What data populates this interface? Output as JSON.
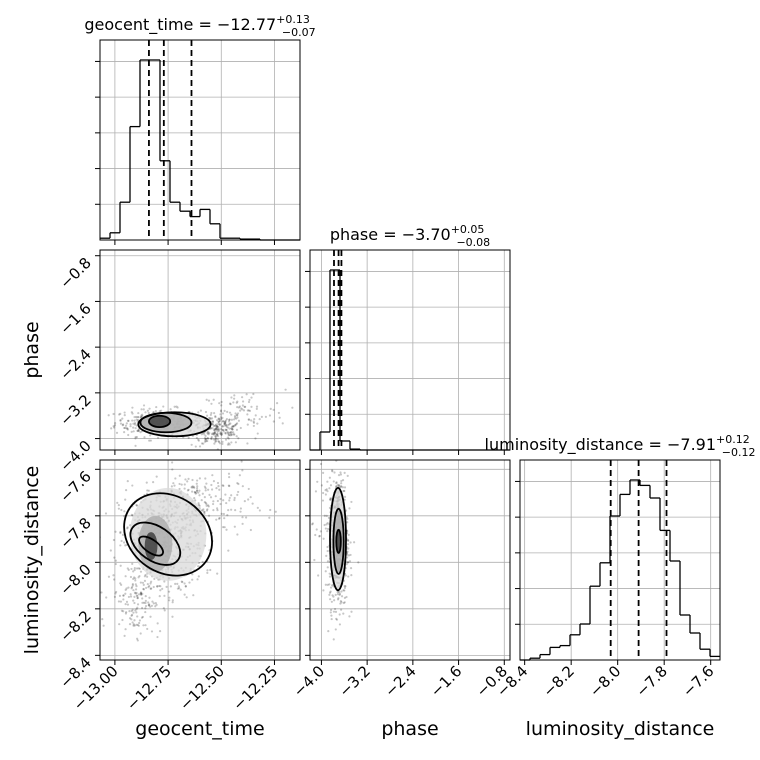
{
  "chart_data": {
    "type": "corner",
    "parameters": [
      {
        "name": "geocent_time",
        "title": {
          "prefix": "geocent_time = ",
          "value": "−12.77",
          "plus": "+0.13",
          "minus": "−0.07"
        },
        "range": [
          -13.07,
          -12.13
        ],
        "ticks": [
          {
            "v": -13.0,
            "label": "−13.00"
          },
          {
            "v": -12.75,
            "label": "−12.75"
          },
          {
            "v": -12.5,
            "label": "−12.50"
          },
          {
            "v": -12.25,
            "label": "−12.25"
          }
        ],
        "quantiles": [
          -12.84,
          -12.77,
          -12.64
        ],
        "hist_edges": [
          -13.07,
          -13.023,
          -12.976,
          -12.929,
          -12.882,
          -12.835,
          -12.788,
          -12.741,
          -12.694,
          -12.647,
          -12.6,
          -12.553,
          -12.506,
          -12.459,
          -12.412,
          -12.365,
          -12.318,
          -12.271,
          -12.224,
          -12.177,
          -12.13
        ],
        "hist_counts": [
          0.01,
          0.04,
          0.21,
          0.63,
          1.0,
          1.0,
          0.44,
          0.21,
          0.16,
          0.13,
          0.17,
          0.09,
          0.01,
          0.01,
          0.005,
          0.005,
          0.0,
          0.0,
          0.0,
          0.0
        ]
      },
      {
        "name": "phase",
        "title": {
          "prefix": "phase = ",
          "value": "−3.70",
          "plus": "+0.05",
          "minus": "−0.08"
        },
        "range": [
          -4.2,
          -0.7
        ],
        "ticks": [
          {
            "v": -4.0,
            "label": "−4.0"
          },
          {
            "v": -3.2,
            "label": "−3.2"
          },
          {
            "v": -2.4,
            "label": "−2.4"
          },
          {
            "v": -1.6,
            "label": "−1.6"
          },
          {
            "v": -0.8,
            "label": "−0.8"
          }
        ],
        "quantiles": [
          -3.78,
          -3.7,
          -3.65
        ],
        "hist_edges": [
          -4.2,
          -4.025,
          -3.85,
          -3.675,
          -3.5,
          -3.325,
          -3.15,
          -2.975,
          -2.8,
          -2.625,
          -2.45,
          -2.275,
          -2.1,
          -1.925,
          -1.75,
          -1.575,
          -1.4,
          -1.225,
          -1.05,
          -0.875,
          -0.7
        ],
        "hist_counts": [
          0.0,
          0.1,
          1.0,
          0.05,
          0.005,
          0.0,
          0.0,
          0.0,
          0.0,
          0.0,
          0.0,
          0.0,
          0.0,
          0.0,
          0.0,
          0.0,
          0.0,
          0.0,
          0.0,
          0.0
        ]
      },
      {
        "name": "luminosity_distance",
        "title": {
          "prefix": "luminosity_distance = ",
          "value": "−7.91",
          "plus": "+0.12",
          "minus": "−0.12"
        },
        "range": [
          -8.42,
          -7.56
        ],
        "ticks": [
          {
            "v": -8.4,
            "label": "−8.4"
          },
          {
            "v": -8.2,
            "label": "−8.2"
          },
          {
            "v": -8.0,
            "label": "−8.0"
          },
          {
            "v": -7.8,
            "label": "−7.8"
          },
          {
            "v": -7.6,
            "label": "−7.6"
          }
        ],
        "quantiles": [
          -8.03,
          -7.91,
          -7.79
        ],
        "hist_edges": [
          -8.42,
          -8.377,
          -8.334,
          -8.291,
          -8.248,
          -8.205,
          -8.162,
          -8.119,
          -8.076,
          -8.033,
          -7.99,
          -7.947,
          -7.904,
          -7.861,
          -7.818,
          -7.775,
          -7.732,
          -7.689,
          -7.646,
          -7.603,
          -7.56
        ],
        "hist_counts": [
          0.0,
          0.01,
          0.03,
          0.07,
          0.08,
          0.14,
          0.2,
          0.41,
          0.54,
          0.8,
          0.92,
          1.0,
          0.97,
          0.9,
          0.72,
          0.55,
          0.25,
          0.15,
          0.06,
          0.02
        ]
      }
    ],
    "pair_density": [
      {
        "x_param": "geocent_time",
        "y_param": "phase",
        "centers": [
          [
            -12.79,
            -3.7
          ],
          [
            -12.68,
            -3.75
          ],
          [
            -12.5,
            -3.88
          ]
        ],
        "contours": [
          {
            "cx": -12.79,
            "cy": -3.7,
            "rx": 0.05,
            "ry": 0.1
          },
          {
            "cx": -12.76,
            "cy": -3.72,
            "rx": 0.12,
            "ry": 0.17
          },
          {
            "cx": -12.72,
            "cy": -3.75,
            "rx": 0.17,
            "ry": 0.21
          }
        ],
        "scatter_clusters": [
          {
            "cx": -12.8,
            "cy": -3.72,
            "sx": 0.1,
            "sy": 0.12,
            "n": 320
          },
          {
            "cx": -12.52,
            "cy": -3.85,
            "sx": 0.06,
            "sy": 0.14,
            "n": 240
          },
          {
            "cx": -12.4,
            "cy": -3.55,
            "sx": 0.1,
            "sy": 0.2,
            "n": 80
          }
        ]
      },
      {
        "x_param": "geocent_time",
        "y_param": "luminosity_distance",
        "contours": [
          {
            "cx": -12.83,
            "cy": -7.93,
            "rx": 0.03,
            "ry": 0.06
          },
          {
            "cx": -12.81,
            "cy": -7.92,
            "rx": 0.08,
            "ry": 0.12
          },
          {
            "cx": -12.75,
            "cy": -7.88,
            "rx": 0.18,
            "ry": 0.2
          }
        ],
        "scatter_clusters": [
          {
            "cx": -12.78,
            "cy": -7.92,
            "sx": 0.1,
            "sy": 0.12,
            "n": 520
          },
          {
            "cx": -12.6,
            "cy": -7.75,
            "sx": 0.12,
            "sy": 0.08,
            "n": 220
          },
          {
            "cx": -12.9,
            "cy": -8.15,
            "sx": 0.06,
            "sy": 0.08,
            "n": 140
          }
        ]
      },
      {
        "x_param": "phase",
        "y_param": "luminosity_distance",
        "contours": [
          {
            "cx": -3.7,
            "cy": -7.91,
            "rx": 0.04,
            "ry": 0.05
          },
          {
            "cx": -3.7,
            "cy": -7.91,
            "rx": 0.09,
            "ry": 0.14
          },
          {
            "cx": -3.71,
            "cy": -7.9,
            "rx": 0.14,
            "ry": 0.22
          }
        ],
        "scatter_clusters": [
          {
            "cx": -3.7,
            "cy": -7.91,
            "sx": 0.08,
            "sy": 0.14,
            "n": 600
          },
          {
            "cx": -3.85,
            "cy": -7.85,
            "sx": 0.15,
            "sy": 0.15,
            "n": 80
          }
        ]
      }
    ]
  }
}
